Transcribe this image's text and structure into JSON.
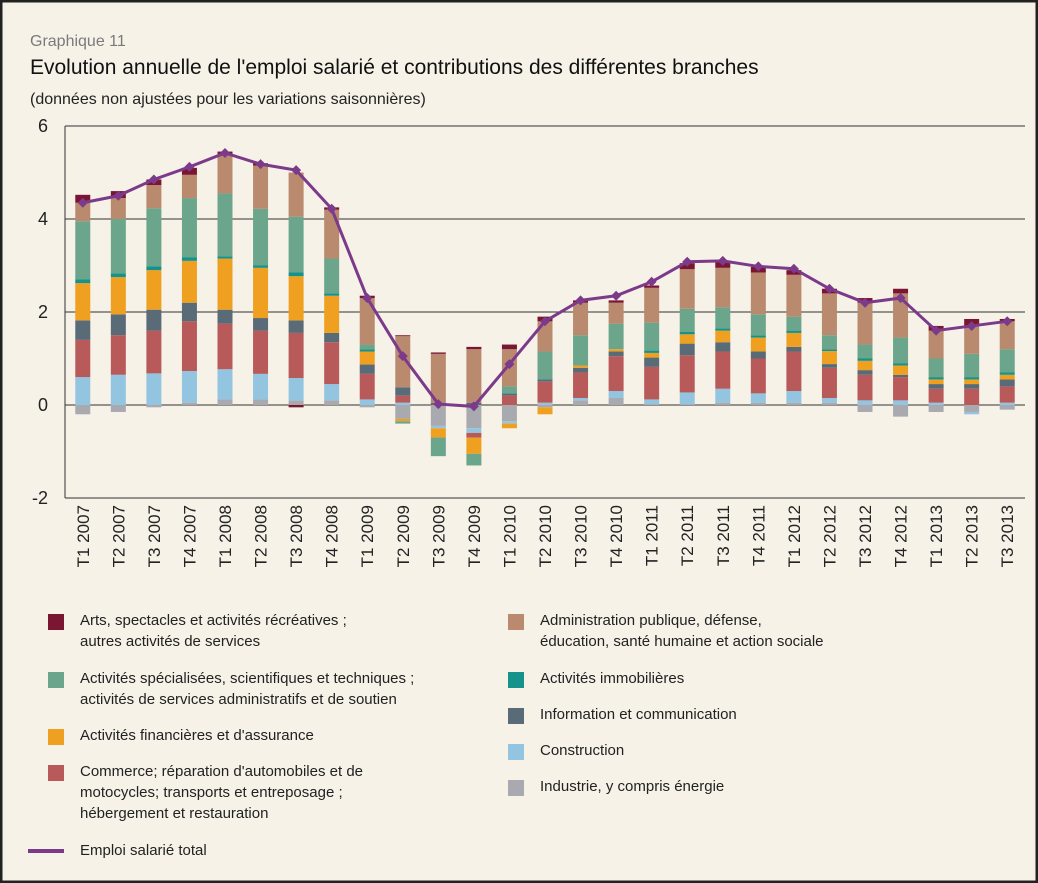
{
  "chart_data": {
    "type": "bar",
    "kicker": "Graphique 11",
    "title": "Evolution annuelle de l'emploi salarié et contributions des différentes branches",
    "subtitle": "(données non ajustées pour les variations saisonnières)",
    "categories": [
      "T1 2007",
      "T2 2007",
      "T3 2007",
      "T4 2007",
      "T1 2008",
      "T2 2008",
      "T3 2008",
      "T4 2008",
      "T1 2009",
      "T2 2009",
      "T3 2009",
      "T4 2009",
      "T1 2010",
      "T2 2010",
      "T3 2010",
      "T4 2010",
      "T1 2011",
      "T2 2011",
      "T3 2011",
      "T4 2011",
      "T1 2012",
      "T2 2012",
      "T3 2012",
      "T4 2012",
      "T1 2013",
      "T2 2013",
      "T3 2013"
    ],
    "ylim": [
      -2,
      6
    ],
    "yticks": [
      -2,
      0,
      2,
      4,
      6
    ],
    "grid": true,
    "stacked": true,
    "series": [
      {
        "name": "Industrie, y compris énergie",
        "color": "#a9aab0",
        "values": [
          -0.2,
          -0.15,
          -0.05,
          0.05,
          0.12,
          0.12,
          0.1,
          0.1,
          -0.05,
          -0.3,
          -0.45,
          -0.5,
          -0.35,
          -0.05,
          0.1,
          0.15,
          0.02,
          0.02,
          0.05,
          0.05,
          0.05,
          0.05,
          -0.15,
          -0.25,
          -0.15,
          -0.15,
          -0.1
        ]
      },
      {
        "name": "Construction",
        "color": "#93c5e0",
        "values": [
          0.6,
          0.65,
          0.68,
          0.68,
          0.65,
          0.55,
          0.48,
          0.35,
          0.12,
          0.05,
          -0.05,
          -0.1,
          -0.05,
          0.05,
          0.05,
          0.15,
          0.1,
          0.25,
          0.3,
          0.2,
          0.25,
          0.1,
          0.1,
          0.1,
          0.05,
          -0.05,
          0.05
        ]
      },
      {
        "name": "Commerce; réparation d'automobiles et de\nmotocycles; transports et entreposage ;\nhébergement et restauration",
        "color": "#b85a5a",
        "values": [
          0.8,
          0.85,
          0.92,
          1.07,
          0.98,
          0.93,
          0.97,
          0.9,
          0.55,
          0.15,
          0,
          -0.1,
          0.2,
          0.45,
          0.55,
          0.75,
          0.7,
          0.8,
          0.8,
          0.75,
          0.85,
          0.65,
          0.55,
          0.5,
          0.3,
          0.35,
          0.35
        ]
      },
      {
        "name": "Information et communication",
        "color": "#5a6b78",
        "values": [
          0.42,
          0.45,
          0.45,
          0.4,
          0.3,
          0.27,
          0.27,
          0.2,
          0.2,
          0.18,
          0.05,
          0.05,
          0.05,
          0.05,
          0.1,
          0.1,
          0.2,
          0.25,
          0.2,
          0.15,
          0.1,
          0.08,
          0.1,
          0.05,
          0.1,
          0.1,
          0.15
        ]
      },
      {
        "name": "Activités financières et d'assurance",
        "color": "#f0a020",
        "values": [
          0.8,
          0.8,
          0.85,
          0.9,
          1.1,
          1.08,
          0.95,
          0.8,
          0.28,
          -0.05,
          -0.2,
          -0.35,
          -0.1,
          -0.15,
          0.05,
          0.05,
          0.1,
          0.2,
          0.25,
          0.3,
          0.3,
          0.28,
          0.2,
          0.2,
          0.1,
          0.1,
          0.1
        ]
      },
      {
        "name": "Activités immobilières",
        "color": "#14928c",
        "values": [
          0.08,
          0.08,
          0.08,
          0.08,
          0.05,
          0.05,
          0.08,
          0.05,
          0.05,
          0,
          0,
          0,
          0,
          0,
          0,
          0,
          0.05,
          0.05,
          0.05,
          0.05,
          0.05,
          0.04,
          0.05,
          0.05,
          0.05,
          0.05,
          0.05
        ]
      },
      {
        "name": "Activités spécialisées, scientifiques et techniques ;\nactivités de services administratifs et de soutien",
        "color": "#6aa58c",
        "values": [
          1.25,
          1.17,
          1.25,
          1.27,
          1.35,
          1.22,
          1.2,
          0.75,
          0.1,
          -0.05,
          -0.4,
          -0.25,
          0.15,
          0.6,
          0.65,
          0.55,
          0.6,
          0.5,
          0.45,
          0.45,
          0.3,
          0.3,
          0.3,
          0.55,
          0.4,
          0.5,
          0.5
        ]
      },
      {
        "name": "Administration publique, défense,\néducation, santé humaine et action sociale",
        "color": "#b98a6e",
        "values": [
          0.4,
          0.45,
          0.5,
          0.5,
          0.85,
          0.93,
          0.95,
          1.05,
          1.0,
          1.1,
          1.05,
          1.15,
          0.8,
          0.65,
          0.7,
          0.45,
          0.75,
          0.85,
          0.85,
          0.9,
          0.9,
          0.9,
          0.9,
          0.95,
          0.6,
          0.6,
          0.6
        ]
      },
      {
        "name": "Arts, spectacles et activités récréatives ;\nautres activités de services",
        "color": "#7a1632",
        "values": [
          0.17,
          0.15,
          0.12,
          0.15,
          0.05,
          0.05,
          -0.05,
          0.05,
          0.05,
          0.02,
          0.03,
          0.05,
          0.1,
          0.1,
          0.05,
          0.05,
          0.05,
          0.13,
          0.15,
          0.12,
          0.1,
          0.1,
          0.1,
          0.1,
          0.1,
          0.15,
          0.05
        ]
      }
    ],
    "line": {
      "name": "Emploi salarié total",
      "color": "#7b3a8a",
      "values": [
        4.35,
        4.5,
        4.85,
        5.12,
        5.42,
        5.18,
        5.05,
        4.22,
        2.3,
        1.05,
        0.02,
        -0.03,
        0.88,
        1.8,
        2.25,
        2.35,
        2.65,
        3.08,
        3.1,
        2.98,
        2.93,
        2.5,
        2.2,
        2.3,
        1.6,
        1.7,
        1.8
      ]
    }
  }
}
